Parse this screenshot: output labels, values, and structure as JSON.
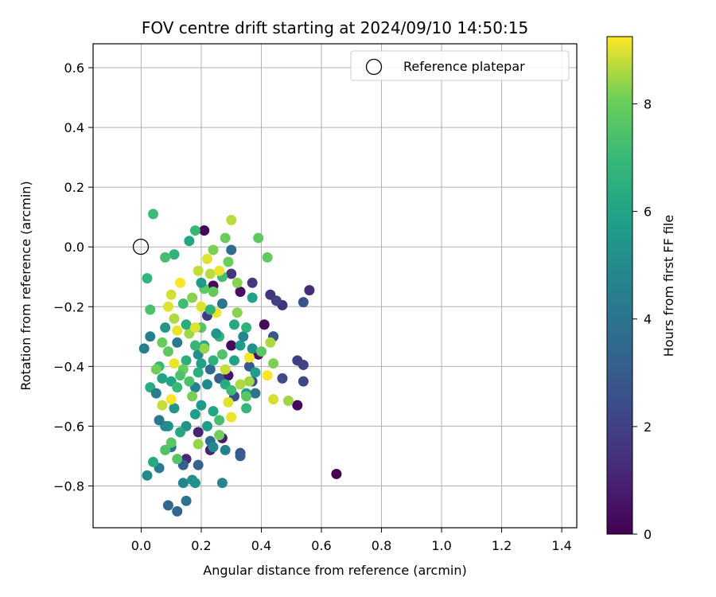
{
  "chart_data": {
    "type": "scatter",
    "title": "FOV centre drift starting at 2024/09/10 14:50:15",
    "xlabel": "Angular distance from reference (arcmin)",
    "ylabel": "Rotation from reference (arcmin)",
    "xlim": [
      -0.16,
      1.45
    ],
    "ylim": [
      -0.94,
      0.68
    ],
    "xticks": [
      0.0,
      0.2,
      0.4,
      0.6,
      0.8,
      1.0,
      1.2,
      1.4
    ],
    "xtick_labels": [
      "0.0",
      "0.2",
      "0.4",
      "0.6",
      "0.8",
      "1.0",
      "1.2",
      "1.4"
    ],
    "yticks": [
      0.6,
      0.4,
      0.2,
      0.0,
      -0.2,
      -0.4,
      -0.6,
      -0.8
    ],
    "ytick_labels": [
      "0.6",
      "0.4",
      "0.2",
      "0.0",
      "−0.2",
      "−0.4",
      "−0.6",
      "−0.8"
    ],
    "grid": true,
    "legend": {
      "placement": "top-right",
      "entries": [
        "Reference platepar"
      ]
    },
    "reference_point": {
      "x": 0.0,
      "y": 0.0
    },
    "colorbar": {
      "label": "Hours from first FF file",
      "range": [
        0,
        9.25
      ],
      "ticks": [
        0,
        2,
        4,
        6,
        8
      ],
      "tick_labels": [
        "0",
        "2",
        "4",
        "6",
        "8"
      ],
      "colormap": "viridis"
    },
    "points": [
      {
        "x": 0.65,
        "y": -0.76,
        "c": 0.0
      },
      {
        "x": 0.52,
        "y": -0.53,
        "c": 0.1
      },
      {
        "x": 0.41,
        "y": -0.26,
        "c": 0.2
      },
      {
        "x": 0.3,
        "y": -0.33,
        "c": 0.3
      },
      {
        "x": 0.21,
        "y": 0.055,
        "c": 0.1
      },
      {
        "x": 0.24,
        "y": -0.13,
        "c": 0.3
      },
      {
        "x": 0.33,
        "y": -0.15,
        "c": 0.4
      },
      {
        "x": 0.39,
        "y": -0.36,
        "c": 0.5
      },
      {
        "x": 0.44,
        "y": -0.3,
        "c": 0.5
      },
      {
        "x": 0.29,
        "y": -0.43,
        "c": 0.6
      },
      {
        "x": 0.27,
        "y": -0.64,
        "c": 0.8
      },
      {
        "x": 0.23,
        "y": -0.68,
        "c": 1.0
      },
      {
        "x": 0.19,
        "y": -0.62,
        "c": 1.0
      },
      {
        "x": 0.15,
        "y": -0.71,
        "c": 1.2
      },
      {
        "x": 0.56,
        "y": -0.145,
        "c": 1.3
      },
      {
        "x": 0.47,
        "y": -0.195,
        "c": 1.4
      },
      {
        "x": 0.43,
        "y": -0.16,
        "c": 1.6
      },
      {
        "x": 0.37,
        "y": -0.12,
        "c": 1.7
      },
      {
        "x": 0.3,
        "y": -0.09,
        "c": 1.7
      },
      {
        "x": 0.22,
        "y": -0.23,
        "c": 1.8
      },
      {
        "x": 0.52,
        "y": -0.38,
        "c": 1.9
      },
      {
        "x": 0.54,
        "y": -0.395,
        "c": 2.1
      },
      {
        "x": 0.54,
        "y": -0.45,
        "c": 2.2
      },
      {
        "x": 0.47,
        "y": -0.44,
        "c": 2.3
      },
      {
        "x": 0.37,
        "y": -0.45,
        "c": 2.4
      },
      {
        "x": 0.31,
        "y": -0.5,
        "c": 2.5
      },
      {
        "x": 0.33,
        "y": -0.69,
        "c": 2.6
      },
      {
        "x": 0.54,
        "y": -0.185,
        "c": 2.7
      },
      {
        "x": 0.44,
        "y": -0.3,
        "c": 2.8
      },
      {
        "x": 0.36,
        "y": -0.4,
        "c": 2.9
      },
      {
        "x": 0.26,
        "y": -0.44,
        "c": 3.0
      },
      {
        "x": 0.33,
        "y": -0.7,
        "c": 3.1
      },
      {
        "x": 0.14,
        "y": -0.73,
        "c": 3.2
      },
      {
        "x": 0.19,
        "y": -0.73,
        "c": 3.3
      },
      {
        "x": 0.12,
        "y": -0.885,
        "c": 3.4
      },
      {
        "x": 0.09,
        "y": -0.865,
        "c": 3.5
      },
      {
        "x": 0.23,
        "y": -0.41,
        "c": 3.6
      },
      {
        "x": 0.3,
        "y": -0.01,
        "c": 3.7
      },
      {
        "x": 0.23,
        "y": -0.65,
        "c": 3.8
      },
      {
        "x": 0.15,
        "y": -0.85,
        "c": 3.9
      },
      {
        "x": 0.1,
        "y": -0.67,
        "c": 4.0
      },
      {
        "x": 0.27,
        "y": -0.19,
        "c": 4.1
      },
      {
        "x": 0.12,
        "y": -0.32,
        "c": 4.2
      },
      {
        "x": 0.06,
        "y": -0.74,
        "c": 4.3
      },
      {
        "x": 0.03,
        "y": -0.3,
        "c": 4.4
      },
      {
        "x": 0.01,
        "y": -0.34,
        "c": 4.5
      },
      {
        "x": 0.18,
        "y": -0.47,
        "c": 4.6
      },
      {
        "x": 0.14,
        "y": -0.79,
        "c": 4.7
      },
      {
        "x": 0.27,
        "y": -0.79,
        "c": 4.8
      },
      {
        "x": 0.24,
        "y": -0.67,
        "c": 4.9
      },
      {
        "x": 0.02,
        "y": -0.765,
        "c": 5.0
      },
      {
        "x": 0.17,
        "y": -0.78,
        "c": 5.1
      },
      {
        "x": 0.18,
        "y": -0.79,
        "c": 5.2
      },
      {
        "x": 0.15,
        "y": -0.6,
        "c": 5.3
      },
      {
        "x": 0.09,
        "y": -0.6,
        "c": 5.4
      },
      {
        "x": 0.11,
        "y": -0.54,
        "c": 5.5
      },
      {
        "x": 0.2,
        "y": -0.53,
        "c": 5.6
      },
      {
        "x": 0.35,
        "y": -0.49,
        "c": 5.7
      },
      {
        "x": 0.38,
        "y": -0.42,
        "c": 5.8
      },
      {
        "x": 0.37,
        "y": -0.17,
        "c": 5.9
      },
      {
        "x": 0.07,
        "y": -0.44,
        "c": 6.0
      },
      {
        "x": 0.16,
        "y": 0.02,
        "c": 6.1
      },
      {
        "x": 0.21,
        "y": -0.33,
        "c": 6.2
      },
      {
        "x": 0.28,
        "y": -0.46,
        "c": 6.3
      },
      {
        "x": 0.03,
        "y": -0.47,
        "c": 6.4
      },
      {
        "x": 0.19,
        "y": -0.42,
        "c": 6.5
      },
      {
        "x": 0.24,
        "y": -0.38,
        "c": 6.6
      },
      {
        "x": 0.11,
        "y": -0.025,
        "c": 6.7
      },
      {
        "x": 0.02,
        "y": -0.105,
        "c": 6.8
      },
      {
        "x": 0.35,
        "y": -0.54,
        "c": 6.9
      },
      {
        "x": 0.18,
        "y": 0.055,
        "c": 7.0
      },
      {
        "x": 0.04,
        "y": 0.11,
        "c": 7.1
      },
      {
        "x": 0.08,
        "y": -0.035,
        "c": 7.3
      },
      {
        "x": 0.03,
        "y": -0.21,
        "c": 7.4
      },
      {
        "x": 0.08,
        "y": -0.68,
        "c": 7.5
      },
      {
        "x": 0.12,
        "y": -0.71,
        "c": 7.6
      },
      {
        "x": 0.1,
        "y": -0.655,
        "c": 7.7
      },
      {
        "x": 0.39,
        "y": 0.03,
        "c": 7.8
      },
      {
        "x": 0.42,
        "y": -0.035,
        "c": 7.9
      },
      {
        "x": 0.28,
        "y": 0.03,
        "c": 8.0
      },
      {
        "x": 0.26,
        "y": -0.63,
        "c": 8.1
      },
      {
        "x": 0.44,
        "y": -0.39,
        "c": 8.2
      },
      {
        "x": 0.32,
        "y": -0.12,
        "c": 8.3
      },
      {
        "x": 0.19,
        "y": -0.66,
        "c": 8.4
      },
      {
        "x": 0.49,
        "y": -0.515,
        "c": 8.5
      },
      {
        "x": 0.3,
        "y": 0.09,
        "c": 8.7
      },
      {
        "x": 0.07,
        "y": -0.53,
        "c": 8.8
      },
      {
        "x": 0.44,
        "y": -0.51,
        "c": 8.9
      },
      {
        "x": 0.2,
        "y": -0.2,
        "c": 9.0
      },
      {
        "x": 0.3,
        "y": -0.57,
        "c": 9.1
      },
      {
        "x": 0.36,
        "y": -0.37,
        "c": 9.2
      },
      {
        "x": 0.04,
        "y": -0.72,
        "c": 6.3
      },
      {
        "x": 0.05,
        "y": -0.49,
        "c": 4.5
      },
      {
        "x": 0.06,
        "y": -0.4,
        "c": 7.0
      },
      {
        "x": 0.07,
        "y": -0.32,
        "c": 8.0
      },
      {
        "x": 0.08,
        "y": -0.27,
        "c": 5.5
      },
      {
        "x": 0.09,
        "y": -0.35,
        "c": 7.8
      },
      {
        "x": 0.1,
        "y": -0.16,
        "c": 8.9
      },
      {
        "x": 0.11,
        "y": -0.24,
        "c": 8.6
      },
      {
        "x": 0.12,
        "y": -0.28,
        "c": 9.1
      },
      {
        "x": 0.13,
        "y": -0.12,
        "c": 9.2
      },
      {
        "x": 0.14,
        "y": -0.19,
        "c": 7.2
      },
      {
        "x": 0.15,
        "y": -0.38,
        "c": 6.5
      },
      {
        "x": 0.16,
        "y": -0.45,
        "c": 7.4
      },
      {
        "x": 0.17,
        "y": -0.5,
        "c": 8.2
      },
      {
        "x": 0.18,
        "y": -0.56,
        "c": 5.8
      },
      {
        "x": 0.19,
        "y": -0.36,
        "c": 5.1
      },
      {
        "x": 0.2,
        "y": -0.27,
        "c": 7.6
      },
      {
        "x": 0.21,
        "y": -0.34,
        "c": 8.4
      },
      {
        "x": 0.22,
        "y": -0.04,
        "c": 9.0
      },
      {
        "x": 0.23,
        "y": -0.09,
        "c": 8.7
      },
      {
        "x": 0.24,
        "y": -0.15,
        "c": 7.9
      },
      {
        "x": 0.25,
        "y": -0.22,
        "c": 9.1
      },
      {
        "x": 0.26,
        "y": -0.3,
        "c": 6.8
      },
      {
        "x": 0.27,
        "y": -0.36,
        "c": 7.5
      },
      {
        "x": 0.28,
        "y": -0.41,
        "c": 8.8
      },
      {
        "x": 0.29,
        "y": -0.52,
        "c": 9.0
      },
      {
        "x": 0.3,
        "y": -0.48,
        "c": 7.1
      },
      {
        "x": 0.31,
        "y": -0.26,
        "c": 6.2
      },
      {
        "x": 0.32,
        "y": -0.22,
        "c": 8.3
      },
      {
        "x": 0.33,
        "y": -0.33,
        "c": 5.6
      },
      {
        "x": 0.34,
        "y": -0.3,
        "c": 4.8
      },
      {
        "x": 0.35,
        "y": -0.27,
        "c": 6.7
      },
      {
        "x": 0.36,
        "y": -0.45,
        "c": 8.5
      },
      {
        "x": 0.37,
        "y": -0.34,
        "c": 5.2
      },
      {
        "x": 0.38,
        "y": -0.49,
        "c": 4.0
      },
      {
        "x": 0.4,
        "y": -0.35,
        "c": 7.7
      },
      {
        "x": 0.42,
        "y": -0.43,
        "c": 9.2
      },
      {
        "x": 0.43,
        "y": -0.32,
        "c": 8.6
      },
      {
        "x": 0.45,
        "y": -0.18,
        "c": 2.0
      },
      {
        "x": 0.08,
        "y": -0.6,
        "c": 5.0
      },
      {
        "x": 0.1,
        "y": -0.45,
        "c": 6.0
      },
      {
        "x": 0.12,
        "y": -0.47,
        "c": 7.0
      },
      {
        "x": 0.14,
        "y": -0.41,
        "c": 8.0
      },
      {
        "x": 0.16,
        "y": -0.29,
        "c": 8.5
      },
      {
        "x": 0.18,
        "y": -0.33,
        "c": 6.9
      },
      {
        "x": 0.2,
        "y": -0.39,
        "c": 5.9
      },
      {
        "x": 0.22,
        "y": -0.46,
        "c": 4.9
      },
      {
        "x": 0.24,
        "y": -0.55,
        "c": 6.1
      },
      {
        "x": 0.26,
        "y": -0.58,
        "c": 7.3
      },
      {
        "x": 0.05,
        "y": -0.41,
        "c": 8.1
      },
      {
        "x": 0.06,
        "y": -0.58,
        "c": 4.2
      },
      {
        "x": 0.09,
        "y": -0.2,
        "c": 9.0
      },
      {
        "x": 0.11,
        "y": -0.39,
        "c": 9.1
      },
      {
        "x": 0.13,
        "y": -0.43,
        "c": 7.4
      },
      {
        "x": 0.15,
        "y": -0.26,
        "c": 6.4
      },
      {
        "x": 0.17,
        "y": -0.17,
        "c": 8.3
      },
      {
        "x": 0.19,
        "y": -0.08,
        "c": 8.8
      },
      {
        "x": 0.21,
        "y": -0.14,
        "c": 7.8
      },
      {
        "x": 0.23,
        "y": -0.21,
        "c": 6.6
      },
      {
        "x": 0.25,
        "y": -0.29,
        "c": 5.4
      },
      {
        "x": 0.27,
        "y": -0.1,
        "c": 7.2
      },
      {
        "x": 0.29,
        "y": -0.05,
        "c": 8.0
      },
      {
        "x": 0.31,
        "y": -0.38,
        "c": 6.0
      },
      {
        "x": 0.33,
        "y": -0.46,
        "c": 8.6
      },
      {
        "x": 0.35,
        "y": -0.5,
        "c": 7.7
      },
      {
        "x": 0.28,
        "y": -0.68,
        "c": 4.6
      },
      {
        "x": 0.22,
        "y": -0.6,
        "c": 5.7
      },
      {
        "x": 0.13,
        "y": -0.62,
        "c": 6.2
      },
      {
        "x": 0.1,
        "y": -0.51,
        "c": 9.2
      },
      {
        "x": 0.18,
        "y": -0.27,
        "c": 9.0
      },
      {
        "x": 0.2,
        "y": -0.12,
        "c": 5.6
      },
      {
        "x": 0.24,
        "y": -0.01,
        "c": 8.2
      },
      {
        "x": 0.26,
        "y": -0.08,
        "c": 9.1
      }
    ]
  }
}
